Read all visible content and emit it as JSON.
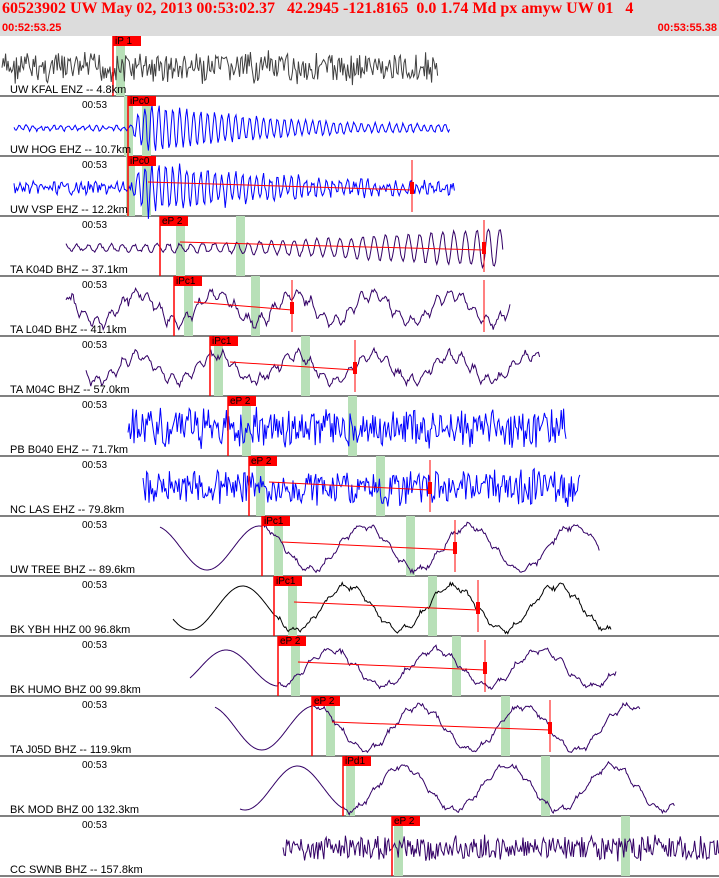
{
  "header": {
    "title": "60523902 UW May 02, 2013 00:53:02.37   42.2945 -121.8165  0.0 1.74 Md px amyw UW 01   4",
    "start_time": "00:52:53.25",
    "end_time": "00:53:55.38"
  },
  "colors": {
    "header_bg": "#dcdcdc",
    "header_text": "#ff0000",
    "pick": "#ff0000",
    "marker": "#b8e0b8"
  },
  "traces": [
    {
      "label": "UW KFAL ENZ -- 4.8km",
      "tick": "",
      "pick": "iP 1",
      "color": "#404040"
    },
    {
      "label": "UW HOG EHZ -- 10.7km",
      "tick": "00:53",
      "pick": "iPc0",
      "color": "#0000ff"
    },
    {
      "label": "UW VSP EHZ -- 12.2km",
      "tick": "00:53",
      "pick": "iPc0",
      "color": "#0000ff"
    },
    {
      "label": "TA K04D BHZ -- 37.1km",
      "tick": "00:53",
      "pick": "eP 2",
      "color": "#330066"
    },
    {
      "label": "TA L04D BHZ -- 41.1km",
      "tick": "00:53",
      "pick": "iPc1",
      "color": "#330066"
    },
    {
      "label": "TA M04C BHZ -- 57.0km",
      "tick": "00:53",
      "pick": "iPc1",
      "color": "#330066"
    },
    {
      "label": "PB B040 EHZ -- 71.7km",
      "tick": "00:53",
      "pick": "eP 2",
      "color": "#0000ff"
    },
    {
      "label": "NC LAS EHZ -- 79.8km",
      "tick": "00:53",
      "pick": "eP 2",
      "color": "#0000ff"
    },
    {
      "label": "UW TREE BHZ -- 89.6km",
      "tick": "00:53",
      "pick": "iPc1",
      "color": "#330066"
    },
    {
      "label": "BK YBH HHZ 00 96.8km",
      "tick": "00:53",
      "pick": "iPc1",
      "color": "#000000"
    },
    {
      "label": "BK HUMO BHZ 00 99.8km",
      "tick": "00:53",
      "pick": "eP 2",
      "color": "#330066"
    },
    {
      "label": "TA J05D BHZ -- 119.9km",
      "tick": "00:53",
      "pick": "eP 2",
      "color": "#330066"
    },
    {
      "label": "BK MOD BHZ 00 132.3km",
      "tick": "00:53",
      "pick": "iPd1",
      "color": "#330066"
    },
    {
      "label": "CC SWNB BHZ -- 157.8km",
      "tick": "00:53",
      "pick": "eP 2",
      "color": "#330066"
    }
  ]
}
